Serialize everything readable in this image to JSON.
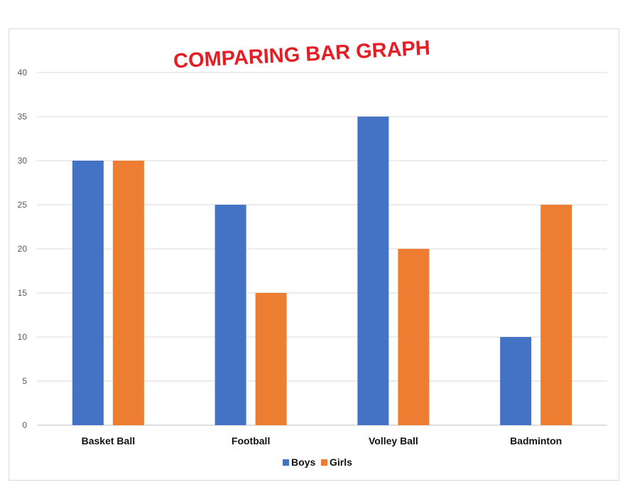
{
  "chart_data": {
    "type": "bar",
    "title": "COMPARING BAR GRAPH",
    "categories": [
      "Basket Ball",
      "Football",
      "Volley Ball",
      "Badminton"
    ],
    "series": [
      {
        "name": "Boys",
        "values": [
          30,
          25,
          35,
          10
        ],
        "color": "#4472c4"
      },
      {
        "name": "Girls",
        "values": [
          30,
          15,
          20,
          25
        ],
        "color": "#ed7d31"
      }
    ],
    "ylim": [
      0,
      40
    ],
    "yticks": [
      "0",
      "5",
      "10",
      "15",
      "20",
      "25",
      "30",
      "35",
      "40"
    ],
    "grid": true,
    "legend_position": "bottom"
  }
}
